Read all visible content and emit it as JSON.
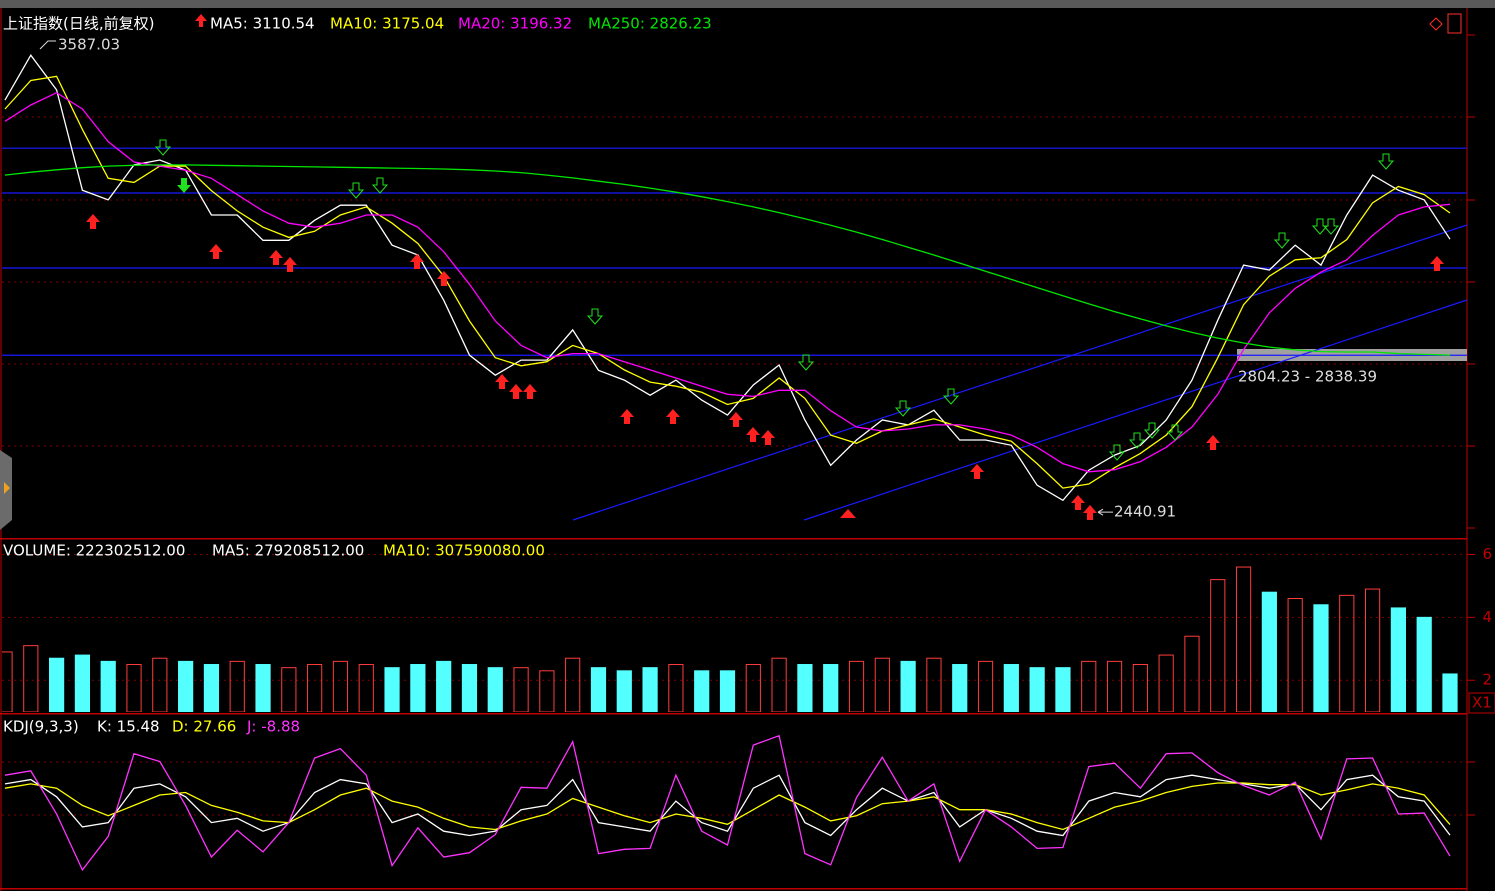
{
  "chart_data": [
    {
      "type": "line",
      "title": "上证指数(日线,前复权)",
      "ylim": [
        2380,
        3673
      ],
      "series": [
        {
          "name": "MA5: 3110.54",
          "color": "#ffffff",
          "values": [
            3452,
            3562,
            3477,
            3231,
            3207,
            3293,
            3305,
            3280,
            3170,
            3170,
            3108,
            3108,
            3157,
            3194,
            3194,
            3096,
            3072,
            2961,
            2826,
            2777,
            2814,
            2814,
            2888,
            2789,
            2765,
            2728,
            2765,
            2716,
            2679,
            2753,
            2802,
            2667,
            2556,
            2618,
            2667,
            2655,
            2691,
            2618,
            2618,
            2605,
            2507,
            2470,
            2544,
            2581,
            2605,
            2667,
            2765,
            2912,
            3047,
            3035,
            3096,
            3047,
            3170,
            3268,
            3231,
            3207,
            3110.54
          ]
        },
        {
          "name": "MA10: 3175.04",
          "color": "#ffff00",
          "values": [
            3430,
            3500,
            3510,
            3380,
            3260,
            3250,
            3290,
            3290,
            3230,
            3180,
            3140,
            3115,
            3130,
            3170,
            3190,
            3150,
            3100,
            3020,
            2910,
            2820,
            2800,
            2810,
            2850,
            2830,
            2790,
            2760,
            2750,
            2735,
            2705,
            2720,
            2770,
            2720,
            2630,
            2610,
            2640,
            2655,
            2670,
            2650,
            2630,
            2615,
            2560,
            2500,
            2510,
            2550,
            2585,
            2630,
            2700,
            2820,
            2950,
            3020,
            3060,
            3065,
            3110,
            3200,
            3240,
            3220,
            3175.04
          ]
        },
        {
          "name": "MA20: 3196.32",
          "color": "#ff00ff",
          "values": [
            3400,
            3440,
            3470,
            3430,
            3350,
            3300,
            3290,
            3280,
            3260,
            3220,
            3180,
            3150,
            3140,
            3150,
            3170,
            3170,
            3140,
            3080,
            3000,
            2910,
            2850,
            2820,
            2830,
            2830,
            2810,
            2790,
            2770,
            2750,
            2730,
            2725,
            2740,
            2740,
            2690,
            2650,
            2640,
            2645,
            2655,
            2655,
            2645,
            2630,
            2600,
            2560,
            2540,
            2545,
            2565,
            2600,
            2650,
            2730,
            2840,
            2930,
            2990,
            3030,
            3060,
            3120,
            3170,
            3190,
            3196.32
          ]
        },
        {
          "name": "MA250: 2826.23",
          "color": "#00e600",
          "values": [
            3268,
            3275,
            3281,
            3286,
            3290,
            3292,
            3293,
            3293,
            3292,
            3291,
            3290,
            3289,
            3288,
            3287,
            3286,
            3285,
            3284,
            3283,
            3281,
            3278,
            3274,
            3268,
            3261,
            3253,
            3245,
            3236,
            3226,
            3215,
            3203,
            3190,
            3176,
            3161,
            3145,
            3128,
            3110,
            3091,
            3072,
            3052,
            3032,
            3012,
            2992,
            2972,
            2952,
            2933,
            2915,
            2898,
            2882,
            2868,
            2856,
            2846,
            2839,
            2835,
            2834,
            2834,
            2830,
            2828,
            2826.23
          ]
        }
      ],
      "horizontal_lines": [
        3334,
        3224,
        3040,
        2826
      ],
      "high_label": 3587.03,
      "low_label": 2440.91,
      "range_label": "2804.23 - 2838.39"
    },
    {
      "type": "bar",
      "ylim": [
        0.99,
        6.46
      ],
      "yticks": [
        2,
        4,
        6
      ],
      "unit_label": "X1",
      "series": [
        {
          "name": "VOLUME: 222302512.00",
          "color": "#ffffff",
          "up_color": "#ff3c3c",
          "down_color": "#54ffff",
          "values": [
            2.9,
            3.1,
            2.7,
            2.8,
            2.6,
            2.5,
            2.7,
            2.6,
            2.5,
            2.6,
            2.5,
            2.4,
            2.5,
            2.6,
            2.5,
            2.4,
            2.5,
            2.6,
            2.5,
            2.4,
            2.4,
            2.3,
            2.7,
            2.4,
            2.3,
            2.4,
            2.5,
            2.3,
            2.3,
            2.5,
            2.7,
            2.5,
            2.5,
            2.6,
            2.7,
            2.6,
            2.7,
            2.5,
            2.6,
            2.5,
            2.4,
            2.4,
            2.6,
            2.6,
            2.5,
            2.8,
            3.4,
            5.2,
            5.6,
            4.8,
            4.6,
            4.4,
            4.7,
            4.9,
            4.3,
            4.0,
            2.2
          ]
        }
      ],
      "ma_labels": [
        {
          "text": "MA5: 279208512.00",
          "color": "#ffffff"
        },
        {
          "text": "MA10: 307590080.00",
          "color": "#ffff00"
        }
      ]
    },
    {
      "type": "line",
      "title": "KDJ(9,3,3)",
      "ylim": [
        -46,
        155
      ],
      "series": [
        {
          "name": "K: 15.48",
          "color": "#ffffff",
          "values": [
            75,
            80,
            60,
            25,
            30,
            70,
            75,
            60,
            30,
            35,
            20,
            30,
            65,
            80,
            75,
            30,
            40,
            20,
            15,
            20,
            45,
            50,
            80,
            30,
            25,
            20,
            55,
            30,
            20,
            70,
            85,
            30,
            15,
            45,
            70,
            55,
            65,
            25,
            45,
            35,
            20,
            15,
            55,
            65,
            60,
            80,
            85,
            80,
            75,
            70,
            75,
            45,
            80,
            85,
            60,
            55,
            15.48
          ]
        },
        {
          "name": "D: 27.66",
          "color": "#ffff00",
          "values": [
            70,
            75,
            70,
            50,
            38,
            50,
            62,
            65,
            50,
            42,
            32,
            30,
            45,
            62,
            70,
            55,
            48,
            35,
            25,
            22,
            32,
            40,
            58,
            48,
            38,
            30,
            40,
            35,
            28,
            45,
            62,
            48,
            32,
            38,
            52,
            55,
            60,
            45,
            45,
            40,
            30,
            22,
            35,
            48,
            55,
            65,
            72,
            76,
            76,
            74,
            74,
            62,
            68,
            75,
            70,
            62,
            27.66
          ]
        },
        {
          "name": "J: -8.88",
          "color": "#ff33ff",
          "values": [
            85,
            90,
            40,
            -25,
            14,
            110,
            101,
            50,
            -10,
            21,
            -4,
            30,
            105,
            116,
            85,
            -20,
            24,
            -10,
            -5,
            16,
            71,
            70,
            124,
            -6,
            -1,
            0,
            85,
            20,
            4,
            120,
            131,
            -6,
            -19,
            59,
            106,
            55,
            75,
            -15,
            45,
            25,
            0,
            1,
            95,
            99,
            70,
            110,
            111,
            88,
            73,
            62,
            77,
            11,
            104,
            105,
            40,
            41,
            -8.88
          ]
        }
      ]
    }
  ]
}
